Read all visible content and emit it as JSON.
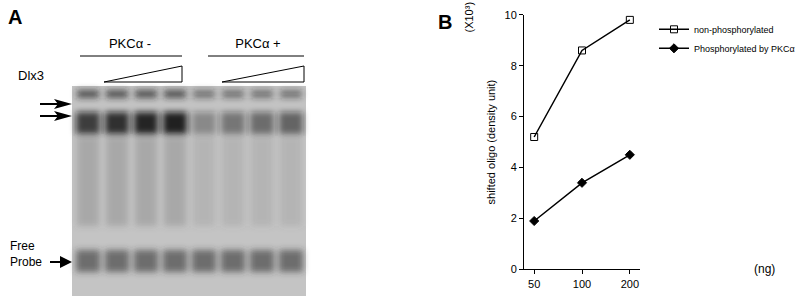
{
  "panel_labels": [
    "A",
    "B"
  ],
  "gel_panel": {
    "groups": [
      "PKCα -",
      "PKCα +"
    ],
    "titration": "Dlx3",
    "free_probe": "Free Probe"
  },
  "chart_data": {
    "type": "line",
    "categories": [
      "50",
      "100",
      "200"
    ],
    "xlabel": "(ng)",
    "ylabel": "shifted oligo (density unit)",
    "annotations": [
      "(X10³)"
    ],
    "series": [
      {
        "name": "non-phosphorylated",
        "color": "#000000",
        "marker": "square-open",
        "values": [
          5.2,
          8.6,
          9.8
        ]
      },
      {
        "name": "Phosphorylated by PKCα",
        "color": "#000000",
        "marker": "diamond",
        "values": [
          1.9,
          3.4,
          4.5
        ]
      }
    ],
    "ylim": [
      0,
      10
    ],
    "yticks": [
      0,
      2,
      4,
      6,
      8,
      10
    ],
    "grid": false,
    "legend": "upper right"
  }
}
